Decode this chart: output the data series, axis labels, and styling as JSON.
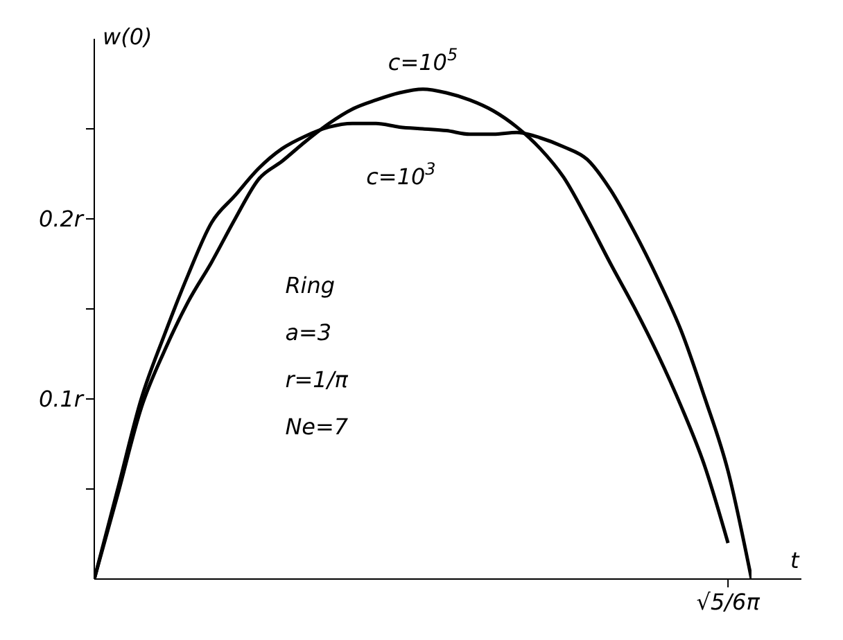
{
  "chart_data": {
    "type": "line",
    "xlabel": "t",
    "ylabel": "w(0)",
    "categories": [
      null,
      null,
      null,
      null,
      null,
      null,
      null,
      null,
      null,
      null,
      null,
      null,
      null,
      null,
      null,
      null,
      null,
      null,
      null,
      null,
      null,
      null,
      null,
      null,
      null,
      null,
      null,
      "√5/6π",
      null
    ],
    "ylim": [
      0,
      0.3
    ],
    "yticks": [
      {
        "value": 0.05,
        "label": null
      },
      {
        "value": 0.1,
        "label": "0.1r"
      },
      {
        "value": 0.15,
        "label": null
      },
      {
        "value": 0.2,
        "label": "0.2r"
      },
      {
        "value": 0.25,
        "label": null
      }
    ],
    "marker": "none",
    "line_style": "solid",
    "series": [
      {
        "name": "c=10$^{5}$",
        "color": "#000000",
        "values": [
          0,
          0.047,
          0.095,
          0.127,
          0.154,
          0.176,
          0.2,
          0.222,
          0.232,
          0.243,
          0.253,
          0.261,
          0.266,
          0.27,
          0.272,
          0.27,
          0.266,
          0.26,
          0.251,
          0.239,
          0.223,
          0.2,
          0.175,
          0.151,
          0.125,
          0.096,
          0.063,
          0.02,
          null
        ]
      },
      {
        "name": "c=10$^{3}$",
        "color": "#000000",
        "values": [
          0,
          0.05,
          0.1,
          0.136,
          0.169,
          0.198,
          0.213,
          0.228,
          0.239,
          0.246,
          0.251,
          0.253,
          0.253,
          0.251,
          0.25,
          0.249,
          0.247,
          0.247,
          0.248,
          0.245,
          0.24,
          0.233,
          0.216,
          0.193,
          0.167,
          0.138,
          0.101,
          0.06,
          0
        ]
      }
    ],
    "annotations": [
      "Ring",
      "a=3",
      "r=1/π",
      "Ne=7"
    ]
  }
}
